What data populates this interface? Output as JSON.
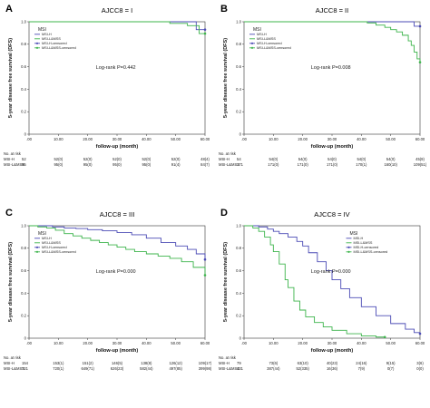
{
  "figure": {
    "colors": {
      "msi_h": "#4b4bb5",
      "msi_l_mss": "#3cb44b",
      "axis": "#333333",
      "background": "#ffffff"
    }
  },
  "chart_data": [
    {
      "type": "line",
      "panel_label": "A",
      "title": "AJCC8 = I",
      "xlabel": "follow-up (month)",
      "ylabel": "5-year disease free survival (DFS)",
      "xlim": [
        0,
        60
      ],
      "ylim": [
        0,
        1.0
      ],
      "x_ticks": [
        ".00",
        "10.00",
        "20.00",
        "30.00",
        "40.00",
        "50.00",
        "60.00"
      ],
      "y_ticks": [
        "0",
        "0.2",
        "0.4",
        "0.6",
        "0.8",
        "1.0"
      ],
      "legend": {
        "title": "MSI",
        "entries": [
          "MSI-H",
          "MSI-L&MSS",
          "MSI-H-censored",
          "MSI-L&MSS-censored"
        ],
        "placement": "top-left"
      },
      "logrank": "Log-rank P=0.442",
      "series": [
        {
          "name": "MSI-H",
          "x": [
            0,
            57,
            57,
            60
          ],
          "y": [
            1.0,
            1.0,
            0.93,
            0.93
          ]
        },
        {
          "name": "MSI-L&MSS",
          "x": [
            0,
            48,
            48,
            54,
            54,
            58,
            58,
            60
          ],
          "y": [
            1.0,
            1.0,
            0.985,
            0.985,
            0.965,
            0.965,
            0.895,
            0.895
          ]
        }
      ],
      "risk_table": {
        "header": "No. at risk",
        "rows": [
          {
            "label": "MSI-H",
            "n": "52",
            "values": [
              "52(0)",
              "52(0)",
              "52(0)",
              "52(0)",
              "52(0)",
              "48(4)"
            ]
          },
          {
            "label": "MSI-L&MSS",
            "n": "95",
            "values": [
              "95(0)",
              "95(0)",
              "95(0)",
              "95(0)",
              "91(4)",
              "84(7)"
            ]
          }
        ]
      }
    },
    {
      "type": "line",
      "panel_label": "B",
      "title": "AJCC8 = II",
      "xlabel": "follow-up (month)",
      "ylabel": "5-year disease free survival (DFS)",
      "xlim": [
        0,
        60
      ],
      "ylim": [
        0,
        1.0
      ],
      "x_ticks": [
        ".00",
        "10.00",
        "20.00",
        "30.00",
        "40.00",
        "50.00",
        "60.00"
      ],
      "y_ticks": [
        "0",
        "0.2",
        "0.4",
        "0.6",
        "0.8",
        "1.0"
      ],
      "legend": {
        "title": "MSI",
        "entries": [
          "MSI-H",
          "MSI-L&MSS",
          "MSI-H-censored",
          "MSI-L&MSS-censored"
        ],
        "placement": "top-left"
      },
      "logrank": "Log-rank P=0.008",
      "series": [
        {
          "name": "MSI-H",
          "x": [
            0,
            58,
            58,
            60
          ],
          "y": [
            1.0,
            1.0,
            0.96,
            0.96
          ]
        },
        {
          "name": "MSI-L&MSS",
          "x": [
            0,
            42,
            45,
            48,
            50,
            52,
            54,
            56,
            57,
            58,
            59,
            60
          ],
          "y": [
            1.0,
            0.99,
            0.97,
            0.95,
            0.93,
            0.91,
            0.88,
            0.83,
            0.79,
            0.73,
            0.67,
            0.64
          ]
        }
      ],
      "risk_table": {
        "header": "No. at risk",
        "rows": [
          {
            "label": "MSI-H",
            "n": "54",
            "values": [
              "54(0)",
              "54(0)",
              "54(0)",
              "54(0)",
              "54(0)",
              "45(9)"
            ]
          },
          {
            "label": "MSI-L&MSS",
            "n": "171",
            "values": [
              "171(0)",
              "171(0)",
              "171(0)",
              "170(1)",
              "160(10)",
              "109(51)"
            ]
          }
        ]
      }
    },
    {
      "type": "line",
      "panel_label": "C",
      "title": "AJCC8 = III",
      "xlabel": "follow-up (month)",
      "ylabel": "5-year disease free survival (DFS)",
      "xlim": [
        0,
        60
      ],
      "ylim": [
        0,
        1.0
      ],
      "x_ticks": [
        ".00",
        "10.00",
        "20.00",
        "30.00",
        "40.00",
        "50.00",
        "60.00"
      ],
      "y_ticks": [
        "0",
        "0.2",
        "0.4",
        "0.6",
        "0.8",
        "1.0"
      ],
      "legend": {
        "title": "MSI",
        "entries": [
          "MSI-H",
          "MSI-L&MSS",
          "MSI-H-censored",
          "MSI-L&MSS-censored"
        ],
        "placement": "top-left"
      },
      "logrank": "Log-rank P=0.000",
      "series": [
        {
          "name": "MSI-H",
          "x": [
            0,
            4,
            8,
            12,
            16,
            20,
            25,
            30,
            35,
            40,
            45,
            50,
            54,
            57,
            60
          ],
          "y": [
            1.0,
            1.0,
            0.99,
            0.98,
            0.975,
            0.965,
            0.955,
            0.94,
            0.92,
            0.89,
            0.85,
            0.82,
            0.79,
            0.75,
            0.7
          ]
        },
        {
          "name": "MSI-L&MSS",
          "x": [
            0,
            3,
            6,
            9,
            12,
            15,
            18,
            21,
            24,
            27,
            30,
            33,
            36,
            40,
            44,
            48,
            52,
            56,
            60
          ],
          "y": [
            1.0,
            0.99,
            0.98,
            0.96,
            0.93,
            0.91,
            0.89,
            0.87,
            0.85,
            0.83,
            0.81,
            0.79,
            0.77,
            0.75,
            0.73,
            0.71,
            0.68,
            0.63,
            0.56
          ]
        }
      ],
      "risk_table": {
        "header": "No. at risk",
        "rows": [
          {
            "label": "MSI-H",
            "n": "154",
            "values": [
              "153(1)",
              "151(2)",
              "146(5)",
              "138(8)",
              "126(12)",
              "109(17)"
            ]
          },
          {
            "label": "MSI-L&MSS",
            "n": "721",
            "values": [
              "720(1)",
              "649(71)",
              "626(23)",
              "582(44)",
              "497(85)",
              "399(98)"
            ]
          }
        ]
      }
    },
    {
      "type": "line",
      "panel_label": "D",
      "title": "AJCC8 = IV",
      "xlabel": "follow-up (month)",
      "ylabel": "5-year disease free survival (DFS)",
      "xlim": [
        0,
        60
      ],
      "ylim": [
        0,
        1.0
      ],
      "x_ticks": [
        ".00",
        "10.00",
        "20.00",
        "30.00",
        "40.00",
        "50.00",
        "60.00"
      ],
      "y_ticks": [
        "0",
        "0.2",
        "0.4",
        "0.6",
        "0.8",
        "1.0"
      ],
      "legend": {
        "title": "MSI",
        "entries": [
          "MSI-H",
          "MSI-L&MSS",
          "MSI-H-censored",
          "MSI-L&MSS-censored"
        ],
        "placement": "top-right"
      },
      "logrank": "Log-rank P=0.000",
      "series": [
        {
          "name": "MSI-H",
          "x": [
            0,
            5,
            8,
            10,
            12,
            15,
            18,
            20,
            22,
            25,
            28,
            30,
            33,
            36,
            40,
            45,
            50,
            55,
            58,
            60
          ],
          "y": [
            1.0,
            0.99,
            0.97,
            0.95,
            0.93,
            0.9,
            0.86,
            0.82,
            0.76,
            0.68,
            0.6,
            0.52,
            0.44,
            0.36,
            0.28,
            0.2,
            0.13,
            0.08,
            0.05,
            0.04
          ]
        },
        {
          "name": "MSI-L&MSS",
          "x": [
            0,
            3,
            5,
            7,
            9,
            10,
            12,
            14,
            15,
            17,
            19,
            21,
            24,
            27,
            30,
            35,
            40,
            45,
            48
          ],
          "y": [
            1.0,
            0.98,
            0.95,
            0.9,
            0.83,
            0.77,
            0.66,
            0.52,
            0.45,
            0.33,
            0.25,
            0.19,
            0.14,
            0.1,
            0.07,
            0.04,
            0.02,
            0.01,
            0.01
          ]
        }
      ],
      "risk_table": {
        "header": "No. at risk",
        "rows": [
          {
            "label": "MSI-H",
            "n": "79",
            "values": [
              "73(6)",
              "63(10)",
              "40(23)",
              "24(16)",
              "9(15)",
              "3(6)"
            ]
          },
          {
            "label": "MSI-L&MSS",
            "n": "431",
            "values": [
              "387(44)",
              "52(335)",
              "16(36)",
              "7(9)",
              "0(7)",
              "0(0)"
            ]
          }
        ]
      }
    }
  ]
}
